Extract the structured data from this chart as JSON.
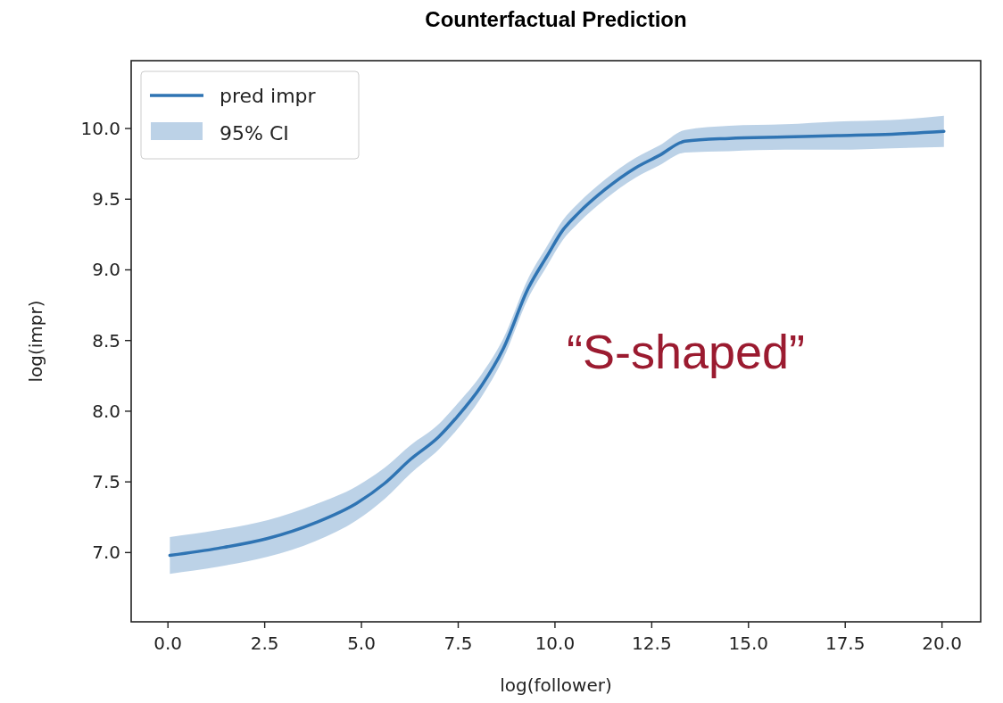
{
  "chart_data": {
    "type": "line",
    "title": "Counterfactual Prediction",
    "xlabel": "log(follower)",
    "ylabel": "log(impr)",
    "xlim": [
      -0.95,
      21.0
    ],
    "ylim": [
      6.51,
      10.48
    ],
    "xticks": [
      {
        "value": 0,
        "label": "0.0"
      },
      {
        "value": 2.5,
        "label": "2.5"
      },
      {
        "value": 5,
        "label": "5.0"
      },
      {
        "value": 7.5,
        "label": "7.5"
      },
      {
        "value": 10,
        "label": "10.0"
      },
      {
        "value": 12.5,
        "label": "12.5"
      },
      {
        "value": 15,
        "label": "15.0"
      },
      {
        "value": 17.5,
        "label": "17.5"
      },
      {
        "value": 20,
        "label": "20.0"
      }
    ],
    "yticks": [
      {
        "value": 7,
        "label": "7.0"
      },
      {
        "value": 7.5,
        "label": "7.5"
      },
      {
        "value": 8,
        "label": "8.0"
      },
      {
        "value": 8.5,
        "label": "8.5"
      },
      {
        "value": 9,
        "label": "9.0"
      },
      {
        "value": 9.5,
        "label": "9.5"
      },
      {
        "value": 10,
        "label": "10.0"
      }
    ],
    "x": [
      0.05,
      1.3,
      2.58,
      3.8,
      4.88,
      5.6,
      6.27,
      7.0,
      7.47,
      8.1,
      8.66,
      9.31,
      9.8,
      10.2,
      10.6,
      11.3,
      12.07,
      12.7,
      13.36,
      14.5,
      15.94,
      17.3,
      18.7,
      20.05
    ],
    "series": [
      {
        "name": "pred impr",
        "color": "#2f74b3",
        "values": [
          6.98,
          7.03,
          7.1,
          7.21,
          7.35,
          7.49,
          7.66,
          7.82,
          7.96,
          8.18,
          8.44,
          8.87,
          9.1,
          9.28,
          9.4,
          9.57,
          9.72,
          9.81,
          9.91,
          9.93,
          9.94,
          9.95,
          9.96,
          9.98
        ],
        "lower": [
          6.85,
          6.9,
          6.97,
          7.08,
          7.23,
          7.38,
          7.56,
          7.73,
          7.87,
          8.1,
          8.37,
          8.8,
          9.03,
          9.21,
          9.33,
          9.5,
          9.65,
          9.74,
          9.83,
          9.84,
          9.85,
          9.85,
          9.86,
          9.87
        ],
        "upper": [
          7.11,
          7.16,
          7.23,
          7.34,
          7.47,
          7.6,
          7.76,
          7.91,
          8.05,
          8.26,
          8.51,
          8.94,
          9.17,
          9.35,
          9.47,
          9.64,
          9.79,
          9.88,
          9.99,
          10.02,
          10.03,
          10.05,
          10.06,
          10.09
        ]
      }
    ],
    "annotations": [
      "95% CI",
      "“S-shaped”"
    ],
    "legend": "top left",
    "grid": false,
    "line_style": "solid",
    "marker": "none"
  }
}
